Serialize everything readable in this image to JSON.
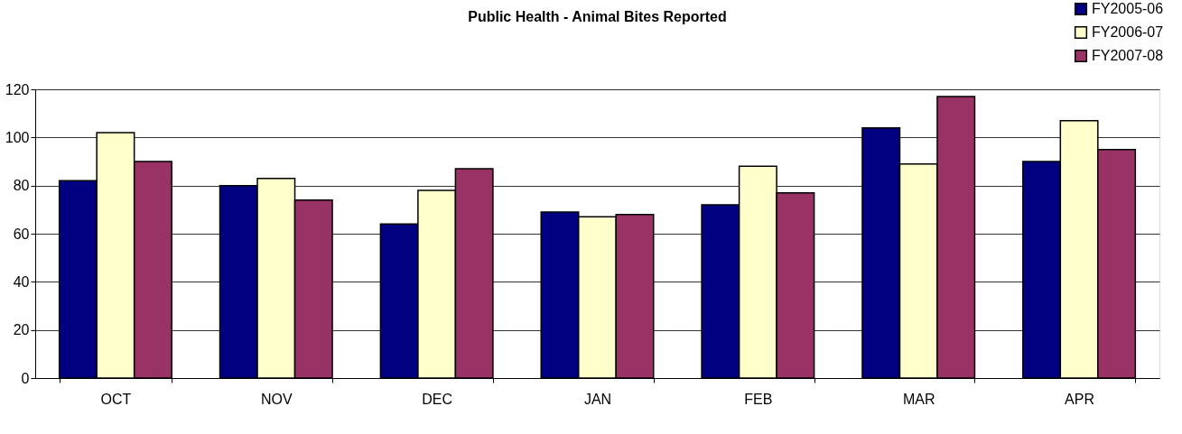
{
  "chart_data": {
    "type": "bar",
    "title": "Public Health - Animal Bites Reported",
    "categories": [
      "OCT",
      "NOV",
      "DEC",
      "JAN",
      "FEB",
      "MAR",
      "APR"
    ],
    "series": [
      {
        "name": "FY2005-06",
        "color": "#000080",
        "values": [
          82,
          80,
          64,
          69,
          72,
          104,
          90
        ]
      },
      {
        "name": "FY2006-07",
        "color": "#ffffcc",
        "values": [
          102,
          83,
          78,
          67,
          88,
          89,
          107
        ]
      },
      {
        "name": "FY2007-08",
        "color": "#993366",
        "values": [
          90,
          74,
          87,
          68,
          77,
          117,
          95
        ]
      }
    ],
    "ylim": [
      0,
      120
    ],
    "yticks": [
      0,
      20,
      40,
      60,
      80,
      100,
      120
    ],
    "grid": "y",
    "legend": "top right"
  }
}
